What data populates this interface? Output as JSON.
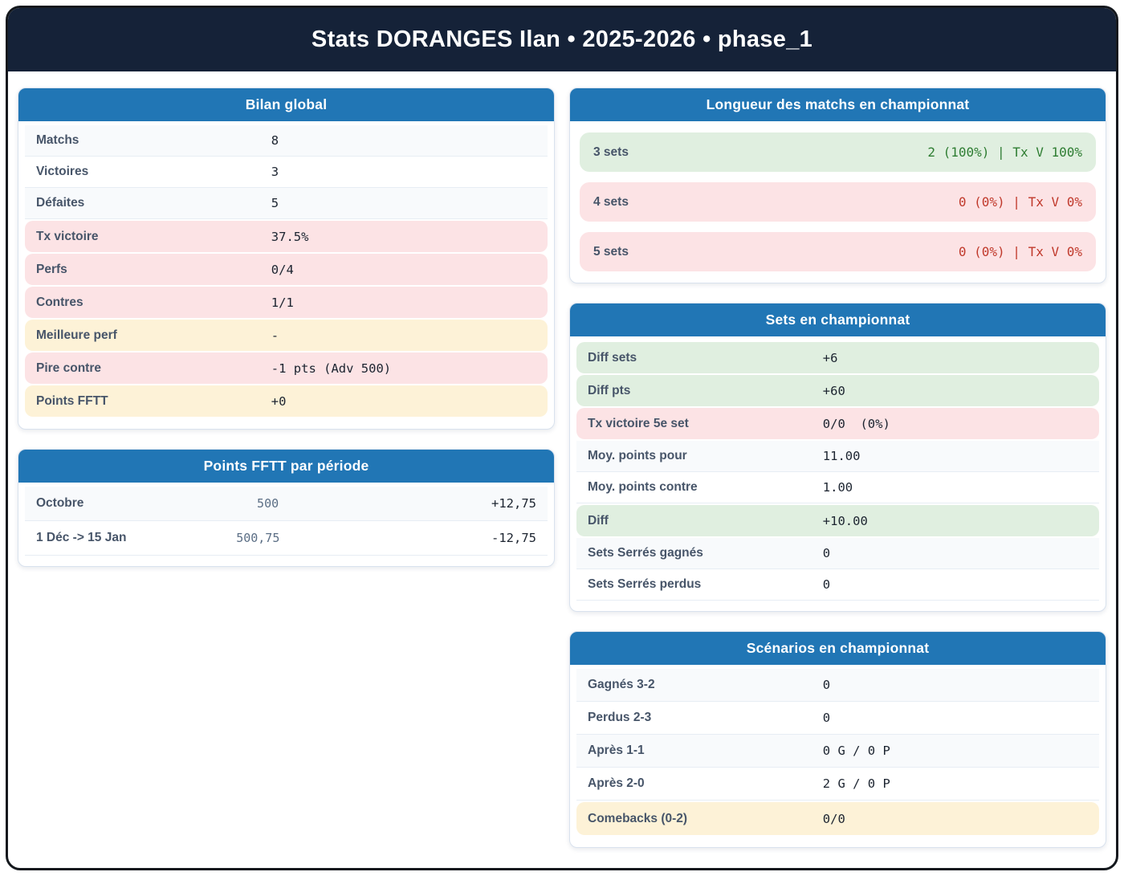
{
  "header": {
    "title": "Stats DORANGES Ilan • 2025-2026 • phase_1"
  },
  "colors": {
    "page_border": "#14181d",
    "header_bg": "#152238",
    "card_header_bg": "#2176b5",
    "label_text": "#475569",
    "value_text": "#1c2430",
    "green_bg": "#e0efe0",
    "pink_bg": "#fce3e5",
    "cream_bg": "#fdf2d7",
    "green_text": "#2e7d32",
    "red_text": "#c0392b"
  },
  "cards": {
    "bilan": {
      "title": "Bilan global",
      "rows": [
        {
          "label": "Matchs",
          "value": "8",
          "tone": "alt"
        },
        {
          "label": "Victoires",
          "value": "3",
          "tone": "plain"
        },
        {
          "label": "Défaites",
          "value": "5",
          "tone": "alt"
        },
        {
          "label": "Tx victoire",
          "value": "37.5%",
          "tone": "pink"
        },
        {
          "label": "Perfs",
          "value": "0/4",
          "tone": "pink"
        },
        {
          "label": "Contres",
          "value": "1/1",
          "tone": "pink"
        },
        {
          "label": "Meilleure perf",
          "value": "-",
          "tone": "cream"
        },
        {
          "label": "Pire contre",
          "value": "-1 pts (Adv 500)",
          "tone": "pink"
        },
        {
          "label": "Points FFTT",
          "value": "+0",
          "tone": "cream"
        }
      ]
    },
    "periode": {
      "title": "Points FFTT par période",
      "rows": [
        {
          "label": "Octobre",
          "mid": "500",
          "right": "+12,75",
          "tone": "alt"
        },
        {
          "label": "1 Déc -> 15 Jan",
          "mid": "500,75",
          "right": "-12,75",
          "tone": "plain"
        }
      ]
    },
    "longueur": {
      "title": "Longueur des matchs en championnat",
      "rows": [
        {
          "label": "3 sets",
          "value": "2 (100%) | Tx V 100%",
          "tone": "green",
          "value_tone": "green"
        },
        {
          "label": "4 sets",
          "value": "0 (0%) | Tx V 0%",
          "tone": "pink",
          "value_tone": "red"
        },
        {
          "label": "5 sets",
          "value": "0 (0%) | Tx V 0%",
          "tone": "pink",
          "value_tone": "red"
        }
      ]
    },
    "sets": {
      "title": "Sets en championnat",
      "rows": [
        {
          "label": "Diff sets",
          "value": "+6",
          "tone": "green"
        },
        {
          "label": "Diff pts",
          "value": "+60",
          "tone": "green"
        },
        {
          "label": "Tx victoire 5e set",
          "value": "0/0  (0%)",
          "tone": "pink"
        },
        {
          "label": "Moy. points pour",
          "value": "11.00",
          "tone": "alt"
        },
        {
          "label": "Moy. points contre",
          "value": "1.00",
          "tone": "plain"
        },
        {
          "label": "Diff",
          "value": "+10.00",
          "tone": "green"
        },
        {
          "label": "Sets Serrés gagnés",
          "value": "0",
          "tone": "alt"
        },
        {
          "label": "Sets Serrés perdus",
          "value": "0",
          "tone": "plain"
        }
      ]
    },
    "scenarios": {
      "title": "Scénarios en championnat",
      "rows": [
        {
          "label": "Gagnés 3-2",
          "value": "0",
          "tone": "alt"
        },
        {
          "label": "Perdus 2-3",
          "value": "0",
          "tone": "plain"
        },
        {
          "label": "Après 1-1",
          "value": "0 G / 0 P",
          "tone": "alt"
        },
        {
          "label": "Après 2-0",
          "value": "2 G / 0 P",
          "tone": "plain"
        },
        {
          "label": "Comebacks (0-2)",
          "value": "0/0",
          "tone": "cream"
        }
      ]
    }
  }
}
